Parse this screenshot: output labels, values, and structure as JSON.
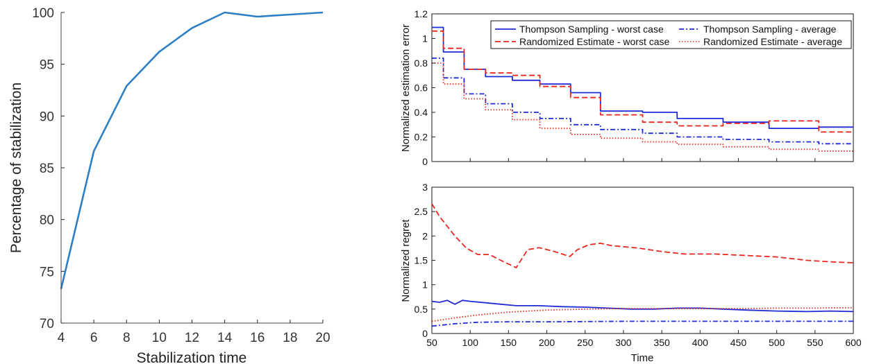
{
  "chart_data": [
    {
      "type": "line",
      "xlabel": "Stabilization time",
      "ylabel": "Percentage of stabilization",
      "xlim": [
        4,
        20
      ],
      "ylim": [
        70,
        100
      ],
      "xticks": [
        4,
        6,
        8,
        10,
        12,
        14,
        16,
        18,
        20
      ],
      "yticks": [
        70,
        75,
        80,
        85,
        90,
        95,
        100
      ],
      "grid": false,
      "series": [
        {
          "color": "#2d7fc4",
          "x": [
            4,
            6,
            8,
            10,
            12,
            14,
            16,
            18,
            20
          ],
          "y": [
            73.3,
            86.6,
            92.9,
            96.2,
            98.5,
            100,
            99.6,
            99.8,
            100
          ]
        }
      ]
    },
    {
      "type": "line",
      "xlabel": "",
      "ylabel": "Normalized estimation error",
      "xlim": [
        50,
        600
      ],
      "ylim": [
        0,
        1.2
      ],
      "xticks": [
        50,
        100,
        150,
        200,
        250,
        300,
        350,
        400,
        450,
        500,
        550,
        600
      ],
      "yticks": [
        0,
        0.2,
        0.4,
        0.6,
        0.8,
        1,
        1.2
      ],
      "legend_position": "top-right",
      "grid": false,
      "series": [
        {
          "name": "Thompson Sampling - worst case",
          "color": "#1f2bd6",
          "dash": "solid",
          "x": [
            50,
            65,
            65,
            92,
            92,
            120,
            120,
            155,
            155,
            191,
            191,
            231,
            231,
            270,
            270,
            325,
            325,
            370,
            370,
            430,
            430,
            490,
            490,
            555,
            555,
            600
          ],
          "y": [
            1.09,
            1.09,
            0.89,
            0.89,
            0.75,
            0.75,
            0.69,
            0.69,
            0.66,
            0.66,
            0.63,
            0.63,
            0.56,
            0.56,
            0.41,
            0.41,
            0.4,
            0.4,
            0.35,
            0.35,
            0.32,
            0.32,
            0.27,
            0.27,
            0.28,
            0.28
          ]
        },
        {
          "name": "Thompson Sampling - average",
          "color": "#1f2bd6",
          "dash": "dashdot",
          "x": [
            50,
            65,
            65,
            92,
            92,
            120,
            120,
            155,
            155,
            191,
            191,
            231,
            231,
            270,
            270,
            325,
            325,
            370,
            370,
            430,
            430,
            490,
            490,
            555,
            555,
            600
          ],
          "y": [
            0.84,
            0.84,
            0.68,
            0.68,
            0.55,
            0.55,
            0.47,
            0.47,
            0.4,
            0.4,
            0.35,
            0.35,
            0.3,
            0.3,
            0.26,
            0.26,
            0.23,
            0.23,
            0.2,
            0.2,
            0.18,
            0.18,
            0.16,
            0.16,
            0.145,
            0.145
          ]
        },
        {
          "name": "Randomized Estimate - worst case",
          "color": "#e8261e",
          "dash": "dashed",
          "x": [
            50,
            65,
            65,
            92,
            92,
            120,
            120,
            155,
            155,
            191,
            191,
            231,
            231,
            270,
            270,
            325,
            325,
            370,
            370,
            430,
            430,
            490,
            490,
            555,
            555,
            600
          ],
          "y": [
            1.06,
            1.06,
            0.92,
            0.92,
            0.75,
            0.75,
            0.72,
            0.72,
            0.7,
            0.7,
            0.61,
            0.61,
            0.52,
            0.52,
            0.38,
            0.38,
            0.32,
            0.32,
            0.29,
            0.29,
            0.31,
            0.31,
            0.33,
            0.33,
            0.24,
            0.24
          ]
        },
        {
          "name": "Randomized Estimate - average",
          "color": "#e8261e",
          "dash": "dotted",
          "x": [
            50,
            65,
            65,
            92,
            92,
            120,
            120,
            155,
            155,
            191,
            191,
            231,
            231,
            270,
            270,
            325,
            325,
            370,
            370,
            430,
            430,
            490,
            490,
            555,
            555,
            600
          ],
          "y": [
            0.8,
            0.8,
            0.63,
            0.63,
            0.51,
            0.51,
            0.42,
            0.42,
            0.34,
            0.34,
            0.27,
            0.27,
            0.22,
            0.22,
            0.19,
            0.19,
            0.16,
            0.16,
            0.14,
            0.14,
            0.12,
            0.12,
            0.1,
            0.1,
            0.085,
            0.085
          ]
        }
      ]
    },
    {
      "type": "line",
      "xlabel": "Time",
      "ylabel": "Normalized regret",
      "xlim": [
        50,
        600
      ],
      "ylim": [
        0,
        3
      ],
      "xticks": [
        50,
        100,
        150,
        200,
        250,
        300,
        350,
        400,
        450,
        500,
        550,
        600
      ],
      "yticks": [
        0,
        0.5,
        1,
        1.5,
        2,
        2.5,
        3
      ],
      "grid": false,
      "series": [
        {
          "name": "Randomized Estimate - worst case",
          "color": "#e8261e",
          "dash": "dashed",
          "x": [
            50,
            60,
            70,
            80,
            95,
            110,
            125,
            140,
            160,
            175,
            190,
            210,
            230,
            240,
            255,
            270,
            285,
            300,
            320,
            350,
            380,
            420,
            460,
            500,
            540,
            570,
            600
          ],
          "y": [
            2.66,
            2.4,
            2.2,
            2.0,
            1.75,
            1.62,
            1.62,
            1.5,
            1.35,
            1.72,
            1.76,
            1.68,
            1.58,
            1.72,
            1.82,
            1.85,
            1.8,
            1.78,
            1.75,
            1.68,
            1.63,
            1.63,
            1.6,
            1.57,
            1.5,
            1.47,
            1.45
          ]
        },
        {
          "name": "Thompson Sampling - worst case",
          "color": "#1f2bd6",
          "dash": "solid",
          "x": [
            50,
            60,
            70,
            80,
            90,
            100,
            120,
            140,
            160,
            190,
            220,
            250,
            280,
            310,
            340,
            370,
            400,
            430,
            460,
            500,
            540,
            570,
            600
          ],
          "y": [
            0.66,
            0.64,
            0.68,
            0.6,
            0.68,
            0.66,
            0.63,
            0.6,
            0.57,
            0.57,
            0.55,
            0.54,
            0.52,
            0.5,
            0.5,
            0.52,
            0.52,
            0.5,
            0.48,
            0.46,
            0.45,
            0.46,
            0.45
          ]
        },
        {
          "name": "Randomized Estimate - average",
          "color": "#e8261e",
          "dash": "dotted",
          "x": [
            50,
            80,
            110,
            150,
            200,
            250,
            300,
            350,
            400,
            450,
            500,
            550,
            600
          ],
          "y": [
            0.25,
            0.32,
            0.38,
            0.44,
            0.48,
            0.5,
            0.51,
            0.51,
            0.51,
            0.51,
            0.52,
            0.52,
            0.53
          ]
        },
        {
          "name": "Thompson Sampling - average",
          "color": "#1f2bd6",
          "dash": "dashdot",
          "x": [
            50,
            80,
            110,
            150,
            200,
            250,
            300,
            350,
            400,
            450,
            500,
            550,
            600
          ],
          "y": [
            0.15,
            0.2,
            0.23,
            0.24,
            0.24,
            0.245,
            0.25,
            0.25,
            0.25,
            0.25,
            0.25,
            0.25,
            0.25
          ]
        }
      ]
    }
  ]
}
